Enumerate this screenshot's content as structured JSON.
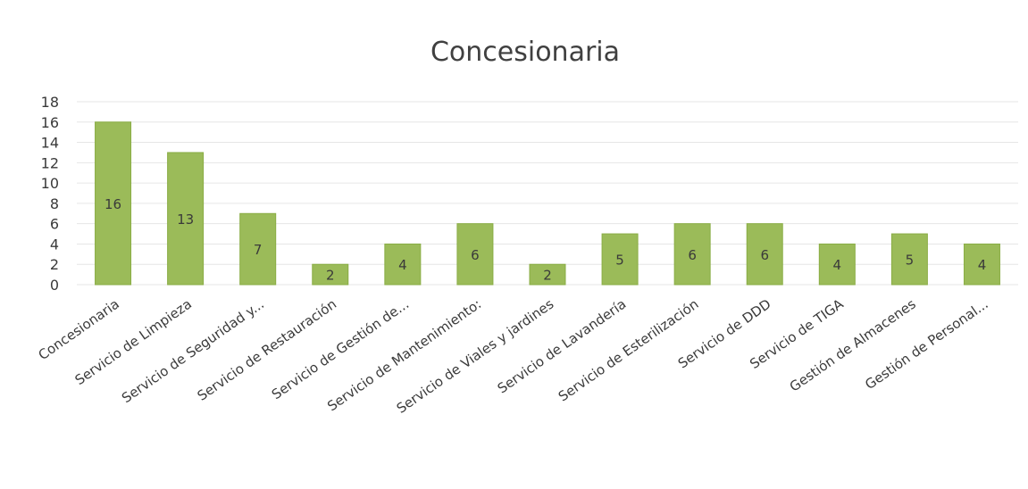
{
  "chart_data": {
    "type": "bar",
    "title": "Concesionaria",
    "xlabel": "",
    "ylabel": "",
    "ylim": [
      0,
      18
    ],
    "yticks": [
      0,
      2,
      4,
      6,
      8,
      10,
      12,
      14,
      16,
      18
    ],
    "grid": true,
    "legend": "none",
    "bar_color": "#9bbb59",
    "categories": [
      "Concesionaria",
      "Servicio de Limpieza",
      "Servicio de Seguridad y...",
      "Servicio de Restauración",
      "Servicio de Gestión de...",
      "Servicio de Mantenimiento:",
      "Servicio de Viales y jardines",
      "Servicio de Lavandería",
      "Servicio de Esterilización",
      "Servicio de DDD",
      "Servicio de TIGA",
      "Gestión de Almacenes",
      "Gestión de Personal..."
    ],
    "values": [
      16,
      13,
      7,
      2,
      4,
      6,
      2,
      5,
      6,
      6,
      4,
      5,
      4
    ]
  }
}
